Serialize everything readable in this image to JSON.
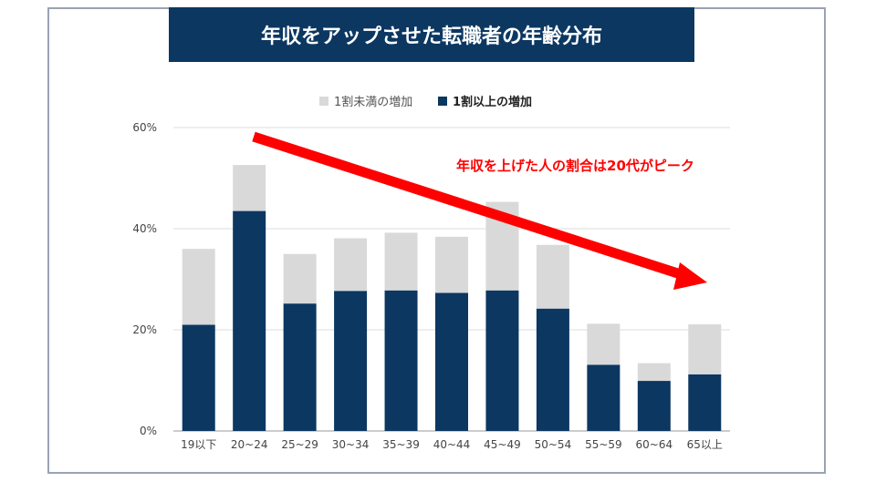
{
  "title": "年収をアップさせた転職者の年齢分布",
  "chart_data": {
    "type": "bar",
    "stacked": true,
    "title": "年収をアップさせた転職者の年齢分布",
    "categories": [
      "19以下",
      "20~24",
      "25~29",
      "30~34",
      "35~39",
      "40~44",
      "45~49",
      "50~54",
      "55~59",
      "60~64",
      "65以上"
    ],
    "series": [
      {
        "name": "1割以上の増加",
        "color": "#0c3761",
        "values": [
          21,
          43.5,
          25.2,
          27.7,
          27.8,
          27.3,
          27.8,
          24.2,
          13.1,
          9.9,
          11.2
        ]
      },
      {
        "name": "1割未満の増加",
        "color": "#d9d9d9",
        "values": [
          15,
          9.1,
          9.8,
          10.4,
          11.4,
          11.1,
          17.5,
          12.6,
          8.1,
          3.5,
          9.9
        ]
      }
    ],
    "yticks": [
      "0%",
      "20%",
      "40%",
      "60%"
    ],
    "ylim": [
      0,
      60
    ],
    "grid": true,
    "legend": "top",
    "annotation": "年収を上げた人の割合は20代がピーク",
    "annotation_color": "#ff0000"
  }
}
